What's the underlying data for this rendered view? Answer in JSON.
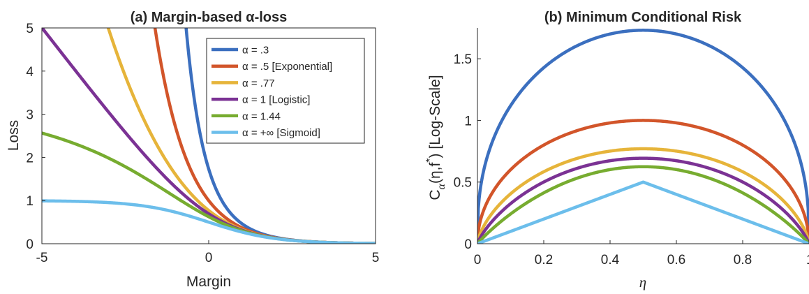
{
  "chart_data": [
    {
      "panel": "a",
      "type": "line",
      "title": "(a) Margin-based α-loss",
      "xlabel": "Margin",
      "ylabel": "Loss",
      "xlim": [
        -5,
        5
      ],
      "ylim": [
        0,
        5
      ],
      "xticks": [
        "-5",
        "0",
        "5"
      ],
      "yticks": [
        "0",
        "1",
        "2",
        "3",
        "4",
        "5"
      ],
      "legend_position": "top-right",
      "legend_entries": [
        "α = .3",
        "α = .5 [Exponential]",
        "α = .77",
        "α = 1 [Logistic]",
        "α = 1.44",
        "α = +∞ [Sigmoid]"
      ],
      "alphas": [
        0.3,
        0.5,
        0.77,
        1,
        1.44,
        "inf"
      ],
      "colors": [
        "#3B6FBF",
        "#D2552A",
        "#E6B43A",
        "#7B3294",
        "#77AC30",
        "#6CBEEB"
      ],
      "x": [
        -5,
        -4,
        -3,
        -2,
        -1,
        0,
        1,
        2,
        3,
        4,
        5
      ],
      "series": [
        {
          "values": [
            null,
            null,
            null,
            null,
            null,
            0.5,
            0.2,
            0.066,
            0.022,
            0.007,
            0.002
          ]
        },
        {
          "values": [
            null,
            null,
            null,
            7.39,
            2.72,
            1.0,
            0.37,
            0.14,
            0.05,
            0.02,
            0.007
          ]
        },
        {
          "values": [
            null,
            null,
            5.75,
            3.52,
            1.95,
            0.86,
            0.38,
            0.16,
            0.06,
            0.02,
            0.008
          ]
        },
        {
          "values": [
            5.01,
            4.02,
            3.05,
            2.13,
            1.31,
            0.69,
            0.31,
            0.13,
            0.05,
            0.018,
            0.007
          ]
        },
        {
          "values": [
            2.56,
            2.27,
            1.95,
            1.59,
            1.14,
            0.6,
            0.28,
            0.11,
            0.04,
            0.015,
            0.005
          ]
        },
        {
          "values": [
            0.99,
            0.98,
            0.95,
            0.88,
            0.73,
            0.5,
            0.27,
            0.12,
            0.05,
            0.018,
            0.007
          ]
        }
      ]
    },
    {
      "panel": "b",
      "type": "line",
      "title": "(b) Minimum Conditional Risk",
      "xlabel": "η",
      "ylabel": "Cα(η,f*) [Log-Scale]",
      "ylabel_parts": {
        "C": "C",
        "sub": "α",
        "paren": "(η,f",
        "sup": "*",
        "rest": ") [Log-Scale]"
      },
      "xlim": [
        0,
        1
      ],
      "ylim": [
        0,
        1.75
      ],
      "xticks": [
        "0",
        "0.2",
        "0.4",
        "0.6",
        "0.8",
        "1"
      ],
      "yticks": [
        "0",
        "0.5",
        "1",
        "1.5"
      ],
      "colors": [
        "#3B6FBF",
        "#D2552A",
        "#E6B43A",
        "#7B3294",
        "#77AC30",
        "#6CBEEB"
      ],
      "x": [
        0,
        0.1,
        0.2,
        0.3,
        0.4,
        0.5,
        0.6,
        0.7,
        0.8,
        0.9,
        1.0
      ],
      "series": [
        {
          "values": [
            0,
            1.12,
            1.43,
            1.6,
            1.7,
            1.73,
            1.7,
            1.6,
            1.43,
            1.12,
            0
          ]
        },
        {
          "values": [
            0,
            0.6,
            0.8,
            0.92,
            0.98,
            1.0,
            0.98,
            0.92,
            0.8,
            0.6,
            0
          ]
        },
        {
          "values": [
            0,
            0.41,
            0.58,
            0.69,
            0.75,
            0.77,
            0.75,
            0.69,
            0.58,
            0.41,
            0
          ]
        },
        {
          "values": [
            0,
            0.33,
            0.5,
            0.61,
            0.67,
            0.69,
            0.67,
            0.61,
            0.5,
            0.33,
            0
          ]
        },
        {
          "values": [
            0,
            0.27,
            0.43,
            0.54,
            0.61,
            0.63,
            0.61,
            0.54,
            0.43,
            0.27,
            0
          ]
        },
        {
          "values": [
            0,
            0.1,
            0.2,
            0.3,
            0.4,
            0.5,
            0.4,
            0.3,
            0.2,
            0.1,
            0
          ]
        }
      ]
    }
  ]
}
